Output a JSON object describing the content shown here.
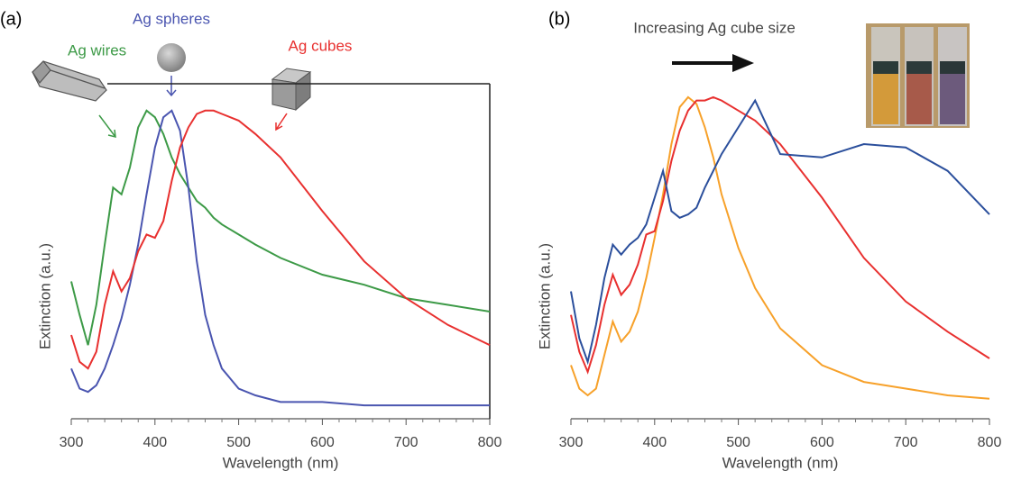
{
  "chart_data": [
    {
      "type": "line",
      "panel_label": "(a)",
      "xlabel": "Wavelength (nm)",
      "ylabel": "Extinction (a.u.)",
      "xlim": [
        300,
        800
      ],
      "ylim": [
        0,
        1
      ],
      "xticks": [
        300,
        400,
        500,
        600,
        700,
        800
      ],
      "frame": true,
      "x": [
        300,
        310,
        320,
        330,
        340,
        350,
        360,
        370,
        380,
        390,
        400,
        410,
        420,
        430,
        440,
        450,
        460,
        470,
        480,
        500,
        520,
        550,
        600,
        650,
        700,
        750,
        800
      ],
      "series": [
        {
          "name": "Ag wires",
          "color": "#3d9a47",
          "values": [
            0.41,
            0.31,
            0.22,
            0.34,
            0.52,
            0.69,
            0.67,
            0.75,
            0.87,
            0.92,
            0.9,
            0.85,
            0.78,
            0.73,
            0.69,
            0.65,
            0.63,
            0.6,
            0.58,
            0.55,
            0.52,
            0.48,
            0.43,
            0.4,
            0.36,
            0.34,
            0.32
          ]
        },
        {
          "name": "Ag spheres",
          "color": "#4a55b0",
          "values": [
            0.15,
            0.09,
            0.08,
            0.1,
            0.15,
            0.22,
            0.3,
            0.4,
            0.52,
            0.67,
            0.81,
            0.9,
            0.92,
            0.86,
            0.69,
            0.47,
            0.31,
            0.22,
            0.15,
            0.09,
            0.07,
            0.05,
            0.05,
            0.04,
            0.04,
            0.04,
            0.04
          ]
        },
        {
          "name": "Ag cubes",
          "color": "#e8302f",
          "values": [
            0.25,
            0.17,
            0.15,
            0.2,
            0.34,
            0.44,
            0.38,
            0.42,
            0.5,
            0.55,
            0.54,
            0.59,
            0.71,
            0.81,
            0.87,
            0.91,
            0.92,
            0.92,
            0.91,
            0.89,
            0.85,
            0.78,
            0.62,
            0.47,
            0.36,
            0.28,
            0.22
          ]
        }
      ]
    },
    {
      "type": "line",
      "panel_label": "(b)",
      "xlabel": "Wavelength (nm)",
      "ylabel": "Extinction (a.u.)",
      "annotation": "Increasing Ag cube size",
      "xlim": [
        300,
        800
      ],
      "ylim": [
        0,
        1
      ],
      "xticks": [
        300,
        400,
        500,
        600,
        700,
        800
      ],
      "frame": false,
      "x": [
        300,
        310,
        320,
        330,
        340,
        350,
        360,
        370,
        380,
        390,
        400,
        410,
        420,
        430,
        440,
        450,
        460,
        470,
        480,
        500,
        520,
        550,
        600,
        650,
        700,
        750,
        800
      ],
      "series": [
        {
          "color": "#f7a12a",
          "values": [
            0.16,
            0.09,
            0.07,
            0.09,
            0.19,
            0.29,
            0.23,
            0.26,
            0.32,
            0.42,
            0.54,
            0.67,
            0.82,
            0.93,
            0.96,
            0.94,
            0.87,
            0.78,
            0.67,
            0.51,
            0.39,
            0.27,
            0.16,
            0.11,
            0.09,
            0.07,
            0.06
          ]
        },
        {
          "color": "#e8302f",
          "values": [
            0.31,
            0.2,
            0.14,
            0.22,
            0.34,
            0.43,
            0.37,
            0.4,
            0.46,
            0.55,
            0.56,
            0.65,
            0.77,
            0.86,
            0.92,
            0.95,
            0.95,
            0.96,
            0.95,
            0.92,
            0.89,
            0.82,
            0.66,
            0.48,
            0.35,
            0.26,
            0.18
          ]
        },
        {
          "color": "#2b4f9c",
          "values": [
            0.38,
            0.24,
            0.17,
            0.28,
            0.42,
            0.52,
            0.49,
            0.52,
            0.54,
            0.58,
            0.66,
            0.74,
            0.62,
            0.6,
            0.61,
            0.63,
            0.69,
            0.74,
            0.79,
            0.87,
            0.95,
            0.79,
            0.78,
            0.82,
            0.81,
            0.74,
            0.61
          ]
        }
      ]
    }
  ]
}
